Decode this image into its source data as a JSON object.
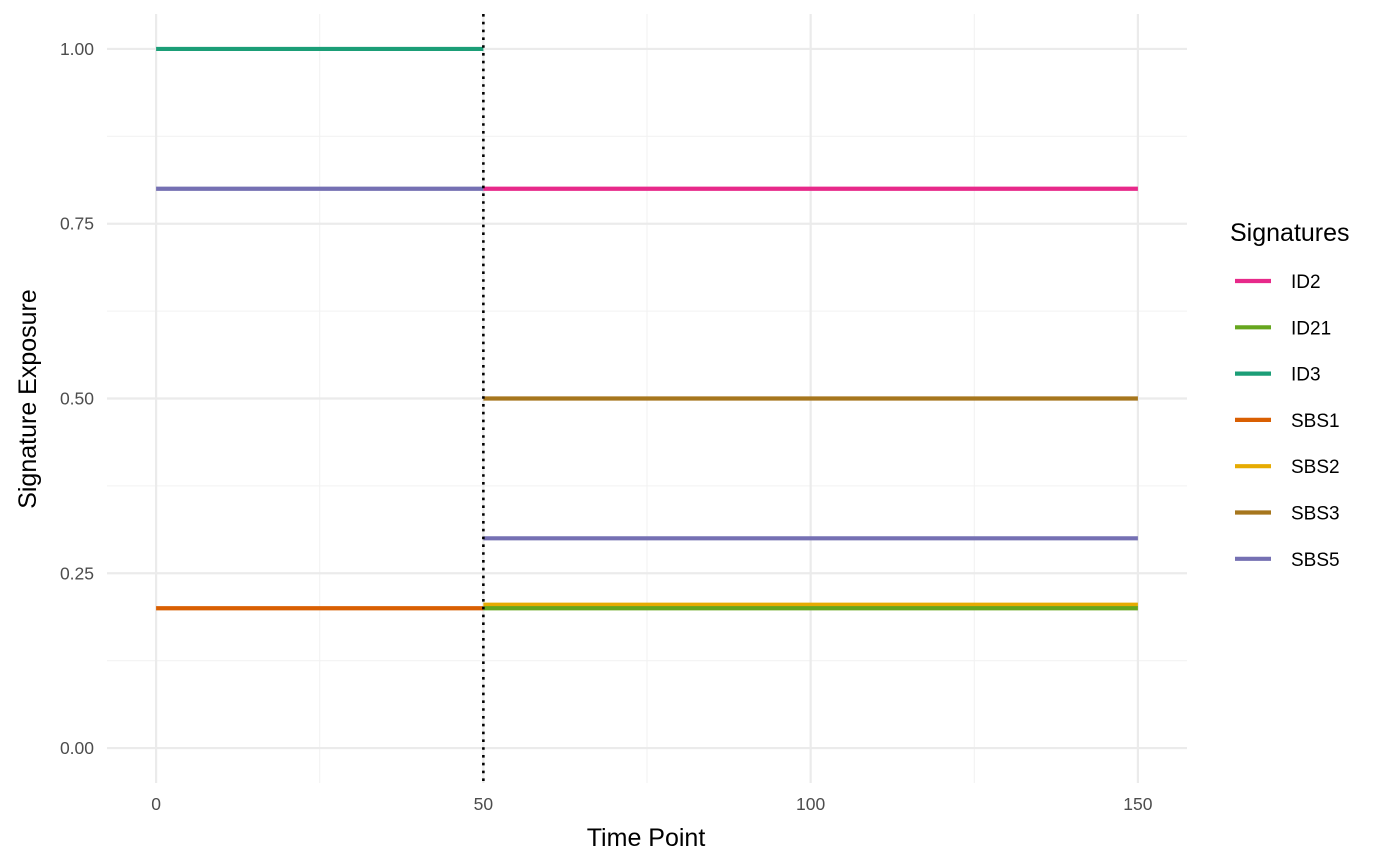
{
  "chart_data": {
    "type": "line",
    "title": "",
    "xlabel": "Time Point",
    "ylabel": "Signature Exposure",
    "xlim": [
      -7.5,
      157.5
    ],
    "ylim": [
      -0.05,
      1.05
    ],
    "x_ticks": [
      0,
      50,
      100,
      150
    ],
    "x_tick_labels": [
      "0",
      "50",
      "100",
      "150"
    ],
    "x_minor_ticks": [
      25,
      75,
      125
    ],
    "y_ticks": [
      0,
      0.25,
      0.5,
      0.75,
      1.0
    ],
    "y_tick_labels": [
      "0.00",
      "0.25",
      "0.50",
      "0.75",
      "1.00"
    ],
    "y_minor_ticks": [
      0.125,
      0.375,
      0.625,
      0.875
    ],
    "grid": true,
    "legend": {
      "title": "Signatures",
      "position": "right"
    },
    "vline": {
      "x": 50,
      "style": "dotted",
      "color": "#000000"
    },
    "series": [
      {
        "name": "ID2",
        "color": "#e7298a",
        "segments": [
          {
            "x": [
              50,
              150
            ],
            "y": [
              0.8,
              0.8
            ]
          }
        ]
      },
      {
        "name": "ID21",
        "color": "#66a61e",
        "segments": [
          {
            "x": [
              50,
              150
            ],
            "y": [
              0.2,
              0.2
            ]
          }
        ]
      },
      {
        "name": "ID3",
        "color": "#1b9e77",
        "segments": [
          {
            "x": [
              0,
              50
            ],
            "y": [
              1.0,
              1.0
            ]
          }
        ]
      },
      {
        "name": "SBS1",
        "color": "#d95f02",
        "segments": [
          {
            "x": [
              0,
              50
            ],
            "y": [
              0.2,
              0.2
            ]
          }
        ]
      },
      {
        "name": "SBS2",
        "color": "#e6ab02",
        "segments": [
          {
            "x": [
              50,
              150
            ],
            "y": [
              0.205,
              0.205
            ]
          }
        ]
      },
      {
        "name": "SBS3",
        "color": "#a6761d",
        "segments": [
          {
            "x": [
              50,
              150
            ],
            "y": [
              0.5,
              0.5
            ]
          }
        ]
      },
      {
        "name": "SBS5",
        "color": "#7570b3",
        "segments": [
          {
            "x": [
              0,
              50
            ],
            "y": [
              0.8,
              0.8
            ]
          },
          {
            "x": [
              50,
              150
            ],
            "y": [
              0.3,
              0.3
            ]
          }
        ]
      }
    ]
  }
}
